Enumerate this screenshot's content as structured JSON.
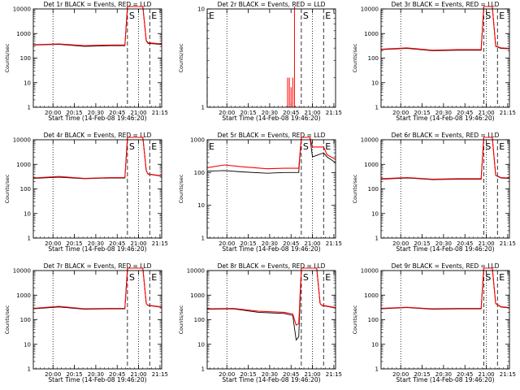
{
  "colors": {
    "events": "#000000",
    "lld": "#ff0000",
    "axis": "#000000"
  },
  "ylabel": "Counts/sec",
  "xlabel": "Start Time (14-Feb-08 19:46:20)",
  "chart_data": [
    {
      "type": "line",
      "title": "Det 1r BLACK = Events, RED = LLD",
      "xticks": [
        "20:00",
        "20:15",
        "20:30",
        "20:45",
        "21:00",
        "21:15"
      ],
      "yscale": "log",
      "ylim": [
        1,
        10000
      ],
      "ytick_labels": [
        "1",
        "10",
        "100",
        "1000",
        "10000"
      ],
      "markers": [
        {
          "label": "S",
          "x": 1.1
        },
        {
          "label": "E",
          "x": 1.36
        }
      ],
      "dotted": [
        0.23,
        1.23
      ],
      "series": [
        {
          "name": "Events",
          "points": [
            [
              0,
              340
            ],
            [
              0.3,
              365
            ],
            [
              0.6,
              300
            ],
            [
              0.9,
              320
            ],
            [
              1.07,
              320
            ],
            [
              1.1,
              15000
            ],
            [
              1.28,
              15000
            ],
            [
              1.32,
              500
            ],
            [
              1.34,
              400
            ],
            [
              1.5,
              360
            ]
          ]
        },
        {
          "name": "LLD",
          "points": [
            [
              0,
              350
            ],
            [
              0.3,
              380
            ],
            [
              0.6,
              320
            ],
            [
              0.9,
              340
            ],
            [
              1.07,
              340
            ],
            [
              1.1,
              15000
            ],
            [
              1.28,
              15000
            ],
            [
              1.32,
              520
            ],
            [
              1.34,
              420
            ],
            [
              1.5,
              380
            ]
          ]
        }
      ]
    },
    {
      "type": "line",
      "title": "Det 2r BLACK = Events, RED = LLD",
      "xticks": [
        "20:00",
        "20:15",
        "20:30",
        "20:45",
        "21:00",
        "21:15"
      ],
      "yscale": "log",
      "ylim": [
        1,
        10
      ],
      "ytick_labels": [
        "1",
        "10"
      ],
      "markers": [
        {
          "label": "E",
          "x": 0.0
        },
        {
          "label": "S",
          "x": 1.1
        },
        {
          "label": "E",
          "x": 1.36
        }
      ],
      "dotted": [
        0.23,
        1.23
      ],
      "series": [
        {
          "name": "Events",
          "points": []
        },
        {
          "name": "LLD",
          "spikes": [
            [
              0.94,
              2.0
            ],
            [
              0.96,
              2.0
            ],
            [
              0.98,
              1.6
            ],
            [
              1.0,
              2.0
            ],
            [
              1.02,
              11
            ]
          ]
        }
      ]
    },
    {
      "type": "line",
      "title": "Det 3r BLACK = Events, RED = LLD",
      "xticks": [
        "20:00",
        "20:15",
        "20:30",
        "20:45",
        "21:00",
        "21:15"
      ],
      "yscale": "log",
      "ylim": [
        1,
        10000
      ],
      "ytick_labels": [
        "1",
        "10",
        "100",
        "1000",
        "10000"
      ],
      "markers": [
        {
          "label": "S",
          "x": 1.2
        },
        {
          "label": "E",
          "x": 1.36
        }
      ],
      "dotted": [
        0.23,
        1.23
      ],
      "series": [
        {
          "name": "Events",
          "points": [
            [
              0,
              220
            ],
            [
              0.3,
              250
            ],
            [
              0.6,
              200
            ],
            [
              0.9,
              210
            ],
            [
              1.17,
              210
            ],
            [
              1.2,
              15000
            ],
            [
              1.3,
              15000
            ],
            [
              1.34,
              300
            ],
            [
              1.4,
              250
            ],
            [
              1.5,
              240
            ]
          ]
        },
        {
          "name": "LLD",
          "points": [
            [
              0,
              230
            ],
            [
              0.3,
              260
            ],
            [
              0.6,
              210
            ],
            [
              0.9,
              220
            ],
            [
              1.17,
              220
            ],
            [
              1.2,
              15000
            ],
            [
              1.3,
              15000
            ],
            [
              1.34,
              310
            ],
            [
              1.4,
              260
            ],
            [
              1.5,
              250
            ]
          ]
        }
      ]
    },
    {
      "type": "line",
      "title": "Det 4r BLACK = Events, RED = LLD",
      "xticks": [
        "20:00",
        "20:15",
        "20:30",
        "20:45",
        "21:00",
        "21:15"
      ],
      "yscale": "log",
      "ylim": [
        1,
        10000
      ],
      "ytick_labels": [
        "1",
        "10",
        "100",
        "1000",
        "10000"
      ],
      "markers": [
        {
          "label": "S",
          "x": 1.1
        },
        {
          "label": "E",
          "x": 1.36
        }
      ],
      "dotted": [
        0.23,
        1.23
      ],
      "series": [
        {
          "name": "Events",
          "points": [
            [
              0,
              270
            ],
            [
              0.3,
              300
            ],
            [
              0.6,
              260
            ],
            [
              0.9,
              280
            ],
            [
              1.07,
              280
            ],
            [
              1.1,
              15000
            ],
            [
              1.28,
              15000
            ],
            [
              1.32,
              550
            ],
            [
              1.34,
              400
            ],
            [
              1.5,
              330
            ]
          ]
        },
        {
          "name": "LLD",
          "points": [
            [
              0,
              280
            ],
            [
              0.3,
              320
            ],
            [
              0.6,
              270
            ],
            [
              0.9,
              290
            ],
            [
              1.07,
              290
            ],
            [
              1.1,
              15000
            ],
            [
              1.28,
              15000
            ],
            [
              1.32,
              560
            ],
            [
              1.34,
              410
            ],
            [
              1.5,
              340
            ]
          ]
        }
      ]
    },
    {
      "type": "line",
      "title": "Det 5r BLACK = Events, RED = LLD",
      "xticks": [
        "20:00",
        "20:15",
        "20:30",
        "20:45",
        "21:00",
        "21:15"
      ],
      "yscale": "log",
      "ylim": [
        1,
        1000
      ],
      "ytick_labels": [
        "1",
        "10",
        "100",
        "1000"
      ],
      "markers": [
        {
          "label": "E",
          "x": 0.0
        },
        {
          "label": "S",
          "x": 1.1
        },
        {
          "label": "E",
          "x": 1.36
        }
      ],
      "dotted": [
        0.23,
        1.23
      ],
      "series": [
        {
          "name": "Events",
          "points": [
            [
              0,
              110
            ],
            [
              0.2,
              115
            ],
            [
              0.4,
              105
            ],
            [
              0.7,
              95
            ],
            [
              0.9,
              100
            ],
            [
              1.07,
              100
            ],
            [
              1.1,
              1500
            ],
            [
              1.2,
              1500
            ],
            [
              1.23,
              300
            ],
            [
              1.36,
              400
            ],
            [
              1.4,
              300
            ],
            [
              1.5,
              200
            ]
          ]
        },
        {
          "name": "LLD",
          "points": [
            [
              0,
              140
            ],
            [
              0.2,
              170
            ],
            [
              0.4,
              150
            ],
            [
              0.7,
              130
            ],
            [
              0.9,
              135
            ],
            [
              1.07,
              135
            ],
            [
              1.1,
              1500
            ],
            [
              1.2,
              1500
            ],
            [
              1.23,
              600
            ],
            [
              1.36,
              600
            ],
            [
              1.4,
              350
            ],
            [
              1.5,
              250
            ]
          ]
        }
      ]
    },
    {
      "type": "line",
      "title": "Det 6r BLACK = Events, RED = LLD",
      "xticks": [
        "20:00",
        "20:15",
        "20:30",
        "20:45",
        "21:00",
        "21:15"
      ],
      "yscale": "log",
      "ylim": [
        1,
        10000
      ],
      "ytick_labels": [
        "1",
        "10",
        "100",
        "1000",
        "10000"
      ],
      "markers": [
        {
          "label": "S",
          "x": 1.2
        },
        {
          "label": "E",
          "x": 1.36
        }
      ],
      "dotted": [
        0.23,
        1.23
      ],
      "series": [
        {
          "name": "Events",
          "points": [
            [
              0,
              250
            ],
            [
              0.3,
              280
            ],
            [
              0.6,
              240
            ],
            [
              0.9,
              250
            ],
            [
              1.17,
              250
            ],
            [
              1.2,
              15000
            ],
            [
              1.3,
              15000
            ],
            [
              1.34,
              350
            ],
            [
              1.4,
              280
            ],
            [
              1.5,
              270
            ]
          ]
        },
        {
          "name": "LLD",
          "points": [
            [
              0,
              260
            ],
            [
              0.3,
              290
            ],
            [
              0.6,
              250
            ],
            [
              0.9,
              260
            ],
            [
              1.17,
              260
            ],
            [
              1.2,
              15000
            ],
            [
              1.3,
              15000
            ],
            [
              1.34,
              360
            ],
            [
              1.4,
              290
            ],
            [
              1.5,
              280
            ]
          ]
        }
      ]
    },
    {
      "type": "line",
      "title": "Det 7r BLACK = Events, RED = LLD",
      "xticks": [
        "20:00",
        "20:15",
        "20:30",
        "20:45",
        "21:00",
        "21:15"
      ],
      "yscale": "log",
      "ylim": [
        1,
        10000
      ],
      "ytick_labels": [
        "1",
        "10",
        "100",
        "1000",
        "10000"
      ],
      "markers": [
        {
          "label": "S",
          "x": 1.1
        },
        {
          "label": "E",
          "x": 1.36
        }
      ],
      "dotted": [
        0.23,
        1.23
      ],
      "series": [
        {
          "name": "Events",
          "points": [
            [
              0,
              280
            ],
            [
              0.3,
              330
            ],
            [
              0.6,
              270
            ],
            [
              0.9,
              280
            ],
            [
              1.07,
              280
            ],
            [
              1.1,
              15000
            ],
            [
              1.28,
              15000
            ],
            [
              1.32,
              450
            ],
            [
              1.34,
              380
            ],
            [
              1.5,
              320
            ]
          ]
        },
        {
          "name": "LLD",
          "points": [
            [
              0,
              290
            ],
            [
              0.3,
              350
            ],
            [
              0.6,
              280
            ],
            [
              0.9,
              290
            ],
            [
              1.07,
              290
            ],
            [
              1.1,
              15000
            ],
            [
              1.28,
              15000
            ],
            [
              1.32,
              460
            ],
            [
              1.34,
              390
            ],
            [
              1.5,
              330
            ]
          ]
        }
      ]
    },
    {
      "type": "line",
      "title": "Det 8r BLACK = Events, RED = LLD",
      "xticks": [
        "20:00",
        "20:15",
        "20:30",
        "20:45",
        "21:00",
        "21:15"
      ],
      "yscale": "log",
      "ylim": [
        1,
        10000
      ],
      "ytick_labels": [
        "1",
        "10",
        "100",
        "1000",
        "10000"
      ],
      "markers": [
        {
          "label": "S",
          "x": 1.1
        },
        {
          "label": "E",
          "x": 1.36
        }
      ],
      "dotted": [
        0.23,
        1.23
      ],
      "series": [
        {
          "name": "Events",
          "points": [
            [
              0,
              270
            ],
            [
              0.3,
              280
            ],
            [
              0.6,
              200
            ],
            [
              0.9,
              180
            ],
            [
              1.0,
              150
            ],
            [
              1.04,
              15
            ],
            [
              1.07,
              20
            ],
            [
              1.1,
              15000
            ],
            [
              1.28,
              15000
            ],
            [
              1.32,
              450
            ],
            [
              1.34,
              380
            ],
            [
              1.5,
              300
            ]
          ]
        },
        {
          "name": "LLD",
          "points": [
            [
              0,
              280
            ],
            [
              0.3,
              290
            ],
            [
              0.6,
              220
            ],
            [
              0.9,
              200
            ],
            [
              1.0,
              170
            ],
            [
              1.04,
              60
            ],
            [
              1.07,
              70
            ],
            [
              1.1,
              15000
            ],
            [
              1.28,
              15000
            ],
            [
              1.32,
              460
            ],
            [
              1.34,
              390
            ],
            [
              1.5,
              310
            ]
          ]
        }
      ]
    },
    {
      "type": "line",
      "title": "Det 9r BLACK = Events, RED = LLD",
      "xticks": [
        "20:00",
        "20:15",
        "20:30",
        "20:45",
        "21:00",
        "21:15"
      ],
      "yscale": "log",
      "ylim": [
        1,
        10000
      ],
      "ytick_labels": [
        "1",
        "10",
        "100",
        "1000",
        "10000"
      ],
      "markers": [
        {
          "label": "S",
          "x": 1.2
        },
        {
          "label": "E",
          "x": 1.36
        }
      ],
      "dotted": [
        0.23,
        1.23
      ],
      "series": [
        {
          "name": "Events",
          "points": [
            [
              0,
              280
            ],
            [
              0.3,
              310
            ],
            [
              0.6,
              270
            ],
            [
              0.9,
              280
            ],
            [
              1.17,
              280
            ],
            [
              1.2,
              15000
            ],
            [
              1.3,
              15000
            ],
            [
              1.34,
              450
            ],
            [
              1.4,
              330
            ],
            [
              1.5,
              300
            ]
          ]
        },
        {
          "name": "LLD",
          "points": [
            [
              0,
              290
            ],
            [
              0.3,
              320
            ],
            [
              0.6,
              280
            ],
            [
              0.9,
              290
            ],
            [
              1.17,
              290
            ],
            [
              1.2,
              15000
            ],
            [
              1.3,
              15000
            ],
            [
              1.34,
              460
            ],
            [
              1.4,
              340
            ],
            [
              1.5,
              310
            ]
          ]
        }
      ]
    }
  ]
}
